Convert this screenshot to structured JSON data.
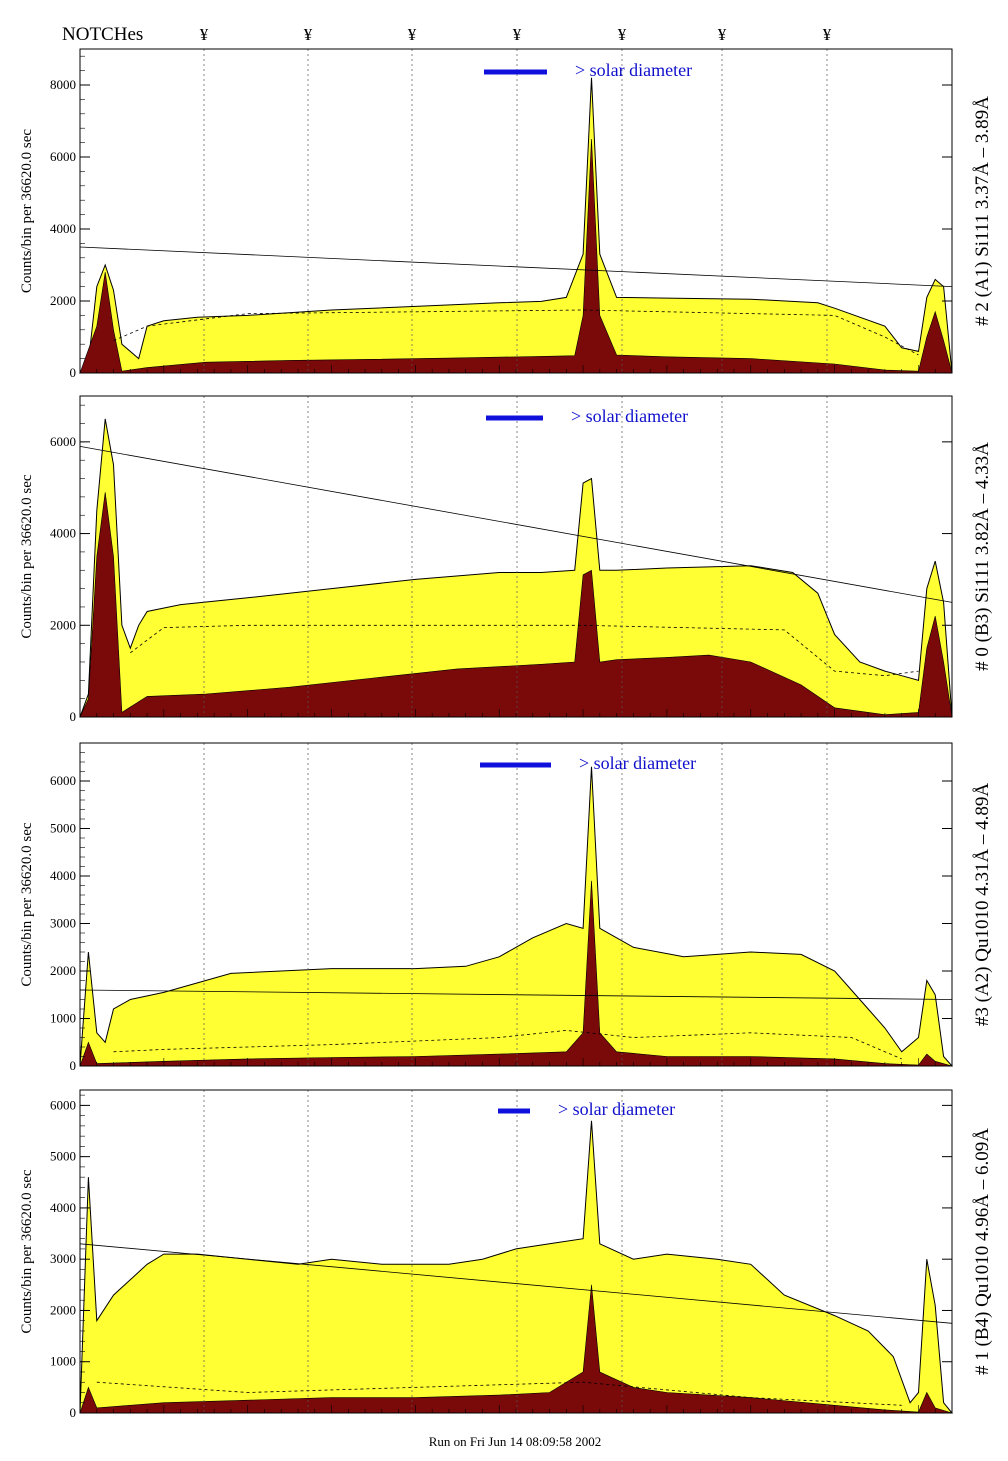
{
  "header": {
    "notch_title": "NOTCHes",
    "notch_mark": "¥",
    "notch_count": 7
  },
  "footer": {
    "run_text": "Run on Fri Jun 14 08:09:58 2002"
  },
  "colors": {
    "fill_total": "#ffff33",
    "fill_line": "#7a0a0a",
    "solar_bar": "#1010dd",
    "axis": "#000000"
  },
  "chart_data": [
    {
      "type": "area",
      "label": "# 2 (A1) Si111  3.37Å – 3.89Å",
      "ylabel": "Counts/bin per  36620.0 sec",
      "ylim": [
        0,
        9000
      ],
      "yticks": [
        0,
        2000,
        4000,
        6000,
        8000
      ],
      "solar_label": "> solar diameter",
      "total": [
        [
          0,
          0
        ],
        [
          1,
          300
        ],
        [
          2,
          2400
        ],
        [
          3,
          3000
        ],
        [
          4,
          2300
        ],
        [
          5,
          800
        ],
        [
          7,
          400
        ],
        [
          8,
          1300
        ],
        [
          10,
          1450
        ],
        [
          14,
          1550
        ],
        [
          20,
          1600
        ],
        [
          30,
          1750
        ],
        [
          40,
          1850
        ],
        [
          50,
          1950
        ],
        [
          55,
          1990
        ],
        [
          58,
          2100
        ],
        [
          60,
          3300
        ],
        [
          61,
          8200
        ],
        [
          62,
          3300
        ],
        [
          64,
          2100
        ],
        [
          70,
          2080
        ],
        [
          80,
          2050
        ],
        [
          88,
          1950
        ],
        [
          90,
          1800
        ],
        [
          96,
          1300
        ],
        [
          98,
          700
        ],
        [
          100,
          600
        ],
        [
          101,
          2100
        ],
        [
          102,
          2600
        ],
        [
          103,
          2400
        ],
        [
          104,
          0
        ]
      ],
      "line": [
        [
          0,
          0
        ],
        [
          2,
          1300
        ],
        [
          3,
          2800
        ],
        [
          4,
          1200
        ],
        [
          5,
          50
        ],
        [
          8,
          150
        ],
        [
          15,
          300
        ],
        [
          25,
          350
        ],
        [
          35,
          380
        ],
        [
          45,
          420
        ],
        [
          55,
          460
        ],
        [
          59,
          480
        ],
        [
          60,
          1600
        ],
        [
          61,
          6500
        ],
        [
          62,
          1600
        ],
        [
          64,
          500
        ],
        [
          70,
          450
        ],
        [
          80,
          400
        ],
        [
          90,
          250
        ],
        [
          96,
          80
        ],
        [
          100,
          50
        ],
        [
          101,
          1000
        ],
        [
          102,
          1700
        ],
        [
          103,
          900
        ],
        [
          104,
          0
        ]
      ],
      "trend": [
        [
          0,
          3500
        ],
        [
          104,
          2400
        ]
      ],
      "dashed": [
        [
          4,
          900
        ],
        [
          8,
          1300
        ],
        [
          20,
          1650
        ],
        [
          60,
          1750
        ],
        [
          90,
          1600
        ],
        [
          96,
          1000
        ],
        [
          100,
          500
        ]
      ]
    },
    {
      "type": "area",
      "label": "# 0 (B3) Si111  3.82Å – 4.33Å",
      "ylabel": "Counts/bin per  36620.0 sec",
      "ylim": [
        0,
        7000
      ],
      "yticks": [
        0,
        2000,
        4000,
        6000
      ],
      "solar_label": "> solar diameter",
      "total": [
        [
          0,
          0
        ],
        [
          1,
          500
        ],
        [
          2,
          4500
        ],
        [
          3,
          6500
        ],
        [
          4,
          5500
        ],
        [
          5,
          2000
        ],
        [
          6,
          1500
        ],
        [
          7,
          2000
        ],
        [
          8,
          2300
        ],
        [
          12,
          2450
        ],
        [
          20,
          2600
        ],
        [
          30,
          2800
        ],
        [
          40,
          3000
        ],
        [
          50,
          3150
        ],
        [
          55,
          3150
        ],
        [
          59,
          3200
        ],
        [
          60,
          5100
        ],
        [
          61,
          5200
        ],
        [
          62,
          3200
        ],
        [
          64,
          3200
        ],
        [
          70,
          3250
        ],
        [
          80,
          3300
        ],
        [
          85,
          3150
        ],
        [
          88,
          2700
        ],
        [
          90,
          1800
        ],
        [
          93,
          1200
        ],
        [
          96,
          1000
        ],
        [
          98,
          900
        ],
        [
          100,
          800
        ],
        [
          101,
          2800
        ],
        [
          102,
          3400
        ],
        [
          103,
          2500
        ],
        [
          104,
          0
        ]
      ],
      "line": [
        [
          0,
          0
        ],
        [
          1,
          400
        ],
        [
          2,
          3500
        ],
        [
          3,
          4900
        ],
        [
          4,
          3500
        ],
        [
          5,
          100
        ],
        [
          8,
          450
        ],
        [
          15,
          500
        ],
        [
          25,
          650
        ],
        [
          35,
          850
        ],
        [
          45,
          1050
        ],
        [
          55,
          1150
        ],
        [
          59,
          1200
        ],
        [
          60,
          3100
        ],
        [
          61,
          3200
        ],
        [
          62,
          1200
        ],
        [
          64,
          1250
        ],
        [
          70,
          1300
        ],
        [
          75,
          1350
        ],
        [
          80,
          1200
        ],
        [
          86,
          700
        ],
        [
          90,
          200
        ],
        [
          96,
          50
        ],
        [
          100,
          100
        ],
        [
          101,
          1500
        ],
        [
          102,
          2200
        ],
        [
          103,
          1200
        ],
        [
          104,
          0
        ]
      ],
      "trend": [
        [
          0,
          5900
        ],
        [
          104,
          2500
        ]
      ],
      "dashed": [
        [
          6,
          1400
        ],
        [
          10,
          1950
        ],
        [
          20,
          2000
        ],
        [
          60,
          2000
        ],
        [
          84,
          1900
        ],
        [
          90,
          1000
        ],
        [
          96,
          900
        ],
        [
          100,
          1000
        ]
      ]
    },
    {
      "type": "area",
      "label": "#3 (A2) Qu1010  4.31Å – 4.89Å",
      "ylabel": "Counts/bin per  36620.0 sec",
      "ylim": [
        0,
        6800
      ],
      "yticks": [
        0,
        1000,
        2000,
        3000,
        4000,
        5000,
        6000
      ],
      "solar_label": "> solar diameter",
      "total": [
        [
          0,
          0
        ],
        [
          1,
          2400
        ],
        [
          2,
          700
        ],
        [
          3,
          500
        ],
        [
          4,
          1200
        ],
        [
          6,
          1400
        ],
        [
          10,
          1550
        ],
        [
          14,
          1750
        ],
        [
          18,
          1950
        ],
        [
          24,
          2000
        ],
        [
          30,
          2050
        ],
        [
          40,
          2050
        ],
        [
          46,
          2100
        ],
        [
          50,
          2300
        ],
        [
          54,
          2700
        ],
        [
          58,
          3000
        ],
        [
          60,
          2900
        ],
        [
          61,
          6300
        ],
        [
          62,
          2900
        ],
        [
          66,
          2500
        ],
        [
          72,
          2300
        ],
        [
          80,
          2400
        ],
        [
          86,
          2350
        ],
        [
          90,
          2000
        ],
        [
          94,
          1200
        ],
        [
          96,
          800
        ],
        [
          98,
          300
        ],
        [
          100,
          600
        ],
        [
          101,
          1800
        ],
        [
          102,
          1500
        ],
        [
          103,
          200
        ],
        [
          104,
          0
        ]
      ],
      "line": [
        [
          0,
          0
        ],
        [
          1,
          500
        ],
        [
          2,
          50
        ],
        [
          10,
          100
        ],
        [
          20,
          150
        ],
        [
          30,
          180
        ],
        [
          40,
          200
        ],
        [
          50,
          250
        ],
        [
          58,
          300
        ],
        [
          60,
          700
        ],
        [
          61,
          3900
        ],
        [
          62,
          700
        ],
        [
          64,
          300
        ],
        [
          70,
          200
        ],
        [
          80,
          200
        ],
        [
          90,
          150
        ],
        [
          96,
          50
        ],
        [
          100,
          20
        ],
        [
          101,
          250
        ],
        [
          102,
          100
        ],
        [
          104,
          0
        ]
      ],
      "trend": [
        [
          0,
          1600
        ],
        [
          104,
          1400
        ]
      ],
      "dashed": [
        [
          4,
          300
        ],
        [
          10,
          350
        ],
        [
          30,
          450
        ],
        [
          50,
          600
        ],
        [
          58,
          750
        ],
        [
          66,
          600
        ],
        [
          80,
          700
        ],
        [
          92,
          600
        ],
        [
          98,
          150
        ]
      ]
    },
    {
      "type": "area",
      "label": "# 1 (B4) Qu1010 4.96Å – 6.09Å",
      "ylabel": "Counts/bin per  36620.0 sec",
      "ylim": [
        0,
        6300
      ],
      "yticks": [
        0,
        1000,
        2000,
        3000,
        4000,
        5000,
        6000
      ],
      "solar_label": "> solar diameter",
      "total": [
        [
          0,
          0
        ],
        [
          1,
          4600
        ],
        [
          2,
          1800
        ],
        [
          4,
          2300
        ],
        [
          6,
          2600
        ],
        [
          8,
          2900
        ],
        [
          10,
          3100
        ],
        [
          14,
          3100
        ],
        [
          20,
          3000
        ],
        [
          26,
          2900
        ],
        [
          30,
          3000
        ],
        [
          36,
          2900
        ],
        [
          40,
          2900
        ],
        [
          44,
          2900
        ],
        [
          48,
          3000
        ],
        [
          52,
          3200
        ],
        [
          56,
          3300
        ],
        [
          60,
          3400
        ],
        [
          61,
          5700
        ],
        [
          62,
          3300
        ],
        [
          66,
          3000
        ],
        [
          70,
          3100
        ],
        [
          76,
          3000
        ],
        [
          80,
          2900
        ],
        [
          84,
          2300
        ],
        [
          90,
          1900
        ],
        [
          94,
          1600
        ],
        [
          97,
          1100
        ],
        [
          99,
          200
        ],
        [
          100,
          400
        ],
        [
          101,
          3000
        ],
        [
          102,
          2100
        ],
        [
          103,
          200
        ],
        [
          104,
          0
        ]
      ],
      "line": [
        [
          0,
          0
        ],
        [
          1,
          500
        ],
        [
          2,
          100
        ],
        [
          10,
          200
        ],
        [
          20,
          250
        ],
        [
          30,
          300
        ],
        [
          40,
          300
        ],
        [
          50,
          350
        ],
        [
          56,
          400
        ],
        [
          60,
          800
        ],
        [
          61,
          2500
        ],
        [
          62,
          800
        ],
        [
          66,
          500
        ],
        [
          70,
          400
        ],
        [
          80,
          300
        ],
        [
          90,
          150
        ],
        [
          96,
          60
        ],
        [
          100,
          20
        ],
        [
          101,
          400
        ],
        [
          102,
          100
        ],
        [
          104,
          0
        ]
      ],
      "trend": [
        [
          0,
          3300
        ],
        [
          104,
          1750
        ]
      ],
      "dashed": [
        [
          2,
          600
        ],
        [
          20,
          400
        ],
        [
          60,
          600
        ],
        [
          80,
          300
        ],
        [
          98,
          150
        ]
      ]
    }
  ]
}
